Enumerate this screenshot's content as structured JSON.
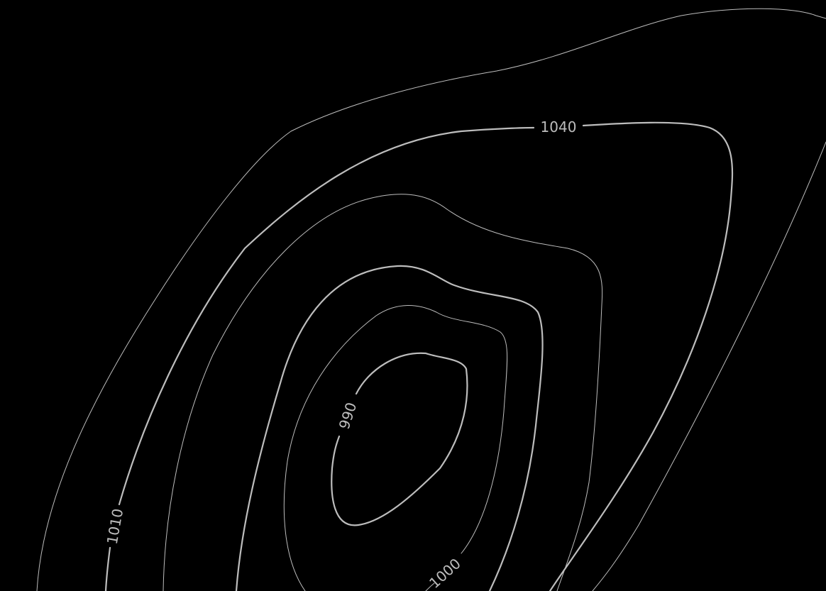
{
  "map": {
    "style": {
      "background": "#000000",
      "line_color": "#bdbdbd",
      "label_color": "#bdbdbd"
    },
    "contour_labels": {
      "l1040": "1040",
      "l1010": "1010",
      "l1000": "1000",
      "l990": "990"
    }
  }
}
